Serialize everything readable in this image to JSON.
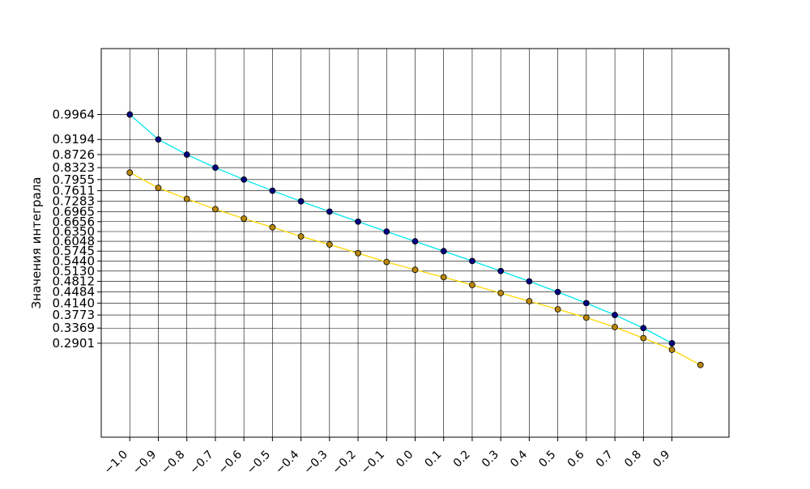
{
  "chart_data": {
    "type": "line",
    "title": "",
    "xlabel": "",
    "ylabel": "Значения интеграла",
    "xlim": [
      -1.1,
      1.1
    ],
    "ylim": [
      0.0,
      1.2
    ],
    "x_tick_values": [
      -1.0,
      -0.9,
      -0.8,
      -0.7,
      -0.6,
      -0.5,
      -0.4,
      -0.3,
      -0.2,
      -0.1,
      0.0,
      0.1,
      0.2,
      0.3,
      0.4,
      0.5,
      0.6,
      0.7,
      0.8,
      0.9
    ],
    "x_tick_labels": [
      "−1.0",
      "−0.9",
      "−0.8",
      "−0.7",
      "−0.6",
      "−0.5",
      "−0.4",
      "−0.3",
      "−0.2",
      "−0.1",
      "0.0",
      "0.1",
      "0.2",
      "0.3",
      "0.4",
      "0.5",
      "0.6",
      "0.7",
      "0.8",
      "0.9"
    ],
    "y_tick_labels": [
      "0.9964",
      "0.9194",
      "0.8726",
      "0.8323",
      "0.7955",
      "0.7611",
      "0.7283",
      "0.6965",
      "0.6656",
      "0.6350",
      "0.6048",
      "0.5745",
      "0.5440",
      "0.5130",
      "0.4812",
      "0.4484",
      "0.4140",
      "0.3773",
      "0.3369",
      "0.2901"
    ],
    "grid": true,
    "legend": "none",
    "series": [
      {
        "color": "#00e5ee",
        "marker_color": "#000080",
        "x": [
          -1.0,
          -0.9,
          -0.8,
          -0.7,
          -0.6,
          -0.5,
          -0.4,
          -0.3,
          -0.2,
          -0.1,
          0.0,
          0.1,
          0.2,
          0.3,
          0.4,
          0.5,
          0.6,
          0.7,
          0.8,
          0.9
        ],
        "values": [
          0.9964,
          0.9194,
          0.8726,
          0.8323,
          0.7955,
          0.7611,
          0.7283,
          0.6965,
          0.6656,
          0.635,
          0.6048,
          0.5745,
          0.544,
          0.513,
          0.4812,
          0.4484,
          0.414,
          0.3773,
          0.3369,
          0.2901
        ]
      },
      {
        "color": "#ffd700",
        "marker_color": "#b8860b",
        "x": [
          -1.0,
          -0.9,
          -0.8,
          -0.7,
          -0.6,
          -0.5,
          -0.4,
          -0.3,
          -0.2,
          -0.1,
          0.0,
          0.1,
          0.2,
          0.3,
          0.4,
          0.5,
          0.6,
          0.7,
          0.8,
          0.9,
          1.0
        ],
        "values": [
          0.817,
          0.77,
          0.736,
          0.704,
          0.675,
          0.648,
          0.62,
          0.595,
          0.568,
          0.541,
          0.517,
          0.494,
          0.47,
          0.445,
          0.42,
          0.395,
          0.369,
          0.34,
          0.306,
          0.27,
          0.223
        ]
      }
    ]
  }
}
